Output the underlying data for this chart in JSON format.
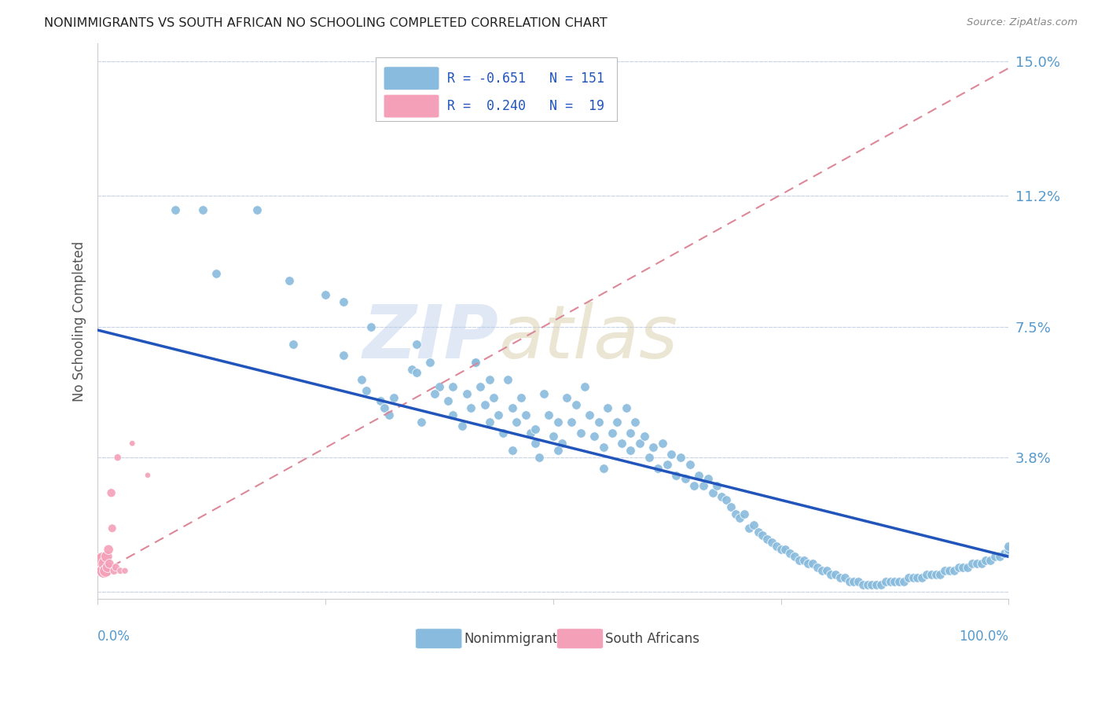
{
  "title": "NONIMMIGRANTS VS SOUTH AFRICAN NO SCHOOLING COMPLETED CORRELATION CHART",
  "source": "Source: ZipAtlas.com",
  "ylabel": "No Schooling Completed",
  "yticks": [
    0.0,
    0.038,
    0.075,
    0.112,
    0.15
  ],
  "ytick_labels": [
    "",
    "3.8%",
    "7.5%",
    "11.2%",
    "15.0%"
  ],
  "xlim": [
    0.0,
    1.0
  ],
  "ylim": [
    -0.002,
    0.155
  ],
  "blue_color": "#88bbdd",
  "pink_color": "#f4a0b8",
  "blue_line_color": "#2255bb",
  "pink_line_color": "#dd8899",
  "grid_color": "#c8d4e8",
  "tick_color": "#5599cc",
  "title_color": "#222222",
  "source_color": "#888888",
  "bg_color": "#ffffff",
  "blue_line_x0": 0.0,
  "blue_line_y0": 0.074,
  "blue_line_x1": 1.0,
  "blue_line_y1": 0.01,
  "pink_line_x0": 0.0,
  "pink_line_y0": 0.005,
  "pink_line_x1": 1.0,
  "pink_line_y1": 0.148,
  "blue_x": [
    0.085,
    0.115,
    0.13,
    0.175,
    0.21,
    0.215,
    0.25,
    0.27,
    0.29,
    0.295,
    0.31,
    0.315,
    0.32,
    0.325,
    0.345,
    0.355,
    0.365,
    0.375,
    0.385,
    0.39,
    0.4,
    0.405,
    0.41,
    0.415,
    0.42,
    0.425,
    0.43,
    0.435,
    0.44,
    0.445,
    0.45,
    0.455,
    0.46,
    0.465,
    0.47,
    0.475,
    0.48,
    0.485,
    0.49,
    0.495,
    0.5,
    0.505,
    0.51,
    0.515,
    0.52,
    0.525,
    0.53,
    0.535,
    0.54,
    0.545,
    0.55,
    0.555,
    0.56,
    0.565,
    0.57,
    0.575,
    0.58,
    0.585,
    0.59,
    0.595,
    0.6,
    0.605,
    0.61,
    0.615,
    0.62,
    0.625,
    0.63,
    0.635,
    0.64,
    0.645,
    0.65,
    0.655,
    0.66,
    0.665,
    0.67,
    0.675,
    0.68,
    0.685,
    0.69,
    0.695,
    0.7,
    0.705,
    0.71,
    0.715,
    0.72,
    0.725,
    0.73,
    0.735,
    0.74,
    0.745,
    0.75,
    0.755,
    0.76,
    0.765,
    0.77,
    0.775,
    0.78,
    0.785,
    0.79,
    0.795,
    0.8,
    0.805,
    0.81,
    0.815,
    0.82,
    0.825,
    0.83,
    0.835,
    0.84,
    0.845,
    0.85,
    0.855,
    0.86,
    0.865,
    0.87,
    0.875,
    0.88,
    0.885,
    0.89,
    0.895,
    0.9,
    0.905,
    0.91,
    0.915,
    0.92,
    0.925,
    0.93,
    0.935,
    0.94,
    0.945,
    0.95,
    0.955,
    0.96,
    0.965,
    0.97,
    0.975,
    0.98,
    0.985,
    0.99,
    0.995,
    1.0,
    1.0,
    1.0,
    0.37,
    0.43,
    0.3,
    0.48,
    0.415,
    0.27,
    0.35,
    0.455,
    0.505,
    0.39,
    0.555,
    0.585,
    0.35
  ],
  "blue_y": [
    0.108,
    0.108,
    0.09,
    0.108,
    0.088,
    0.07,
    0.084,
    0.067,
    0.06,
    0.057,
    0.054,
    0.052,
    0.05,
    0.055,
    0.063,
    0.048,
    0.065,
    0.058,
    0.054,
    0.05,
    0.047,
    0.056,
    0.052,
    0.065,
    0.058,
    0.053,
    0.06,
    0.055,
    0.05,
    0.045,
    0.06,
    0.052,
    0.048,
    0.055,
    0.05,
    0.045,
    0.042,
    0.038,
    0.056,
    0.05,
    0.044,
    0.048,
    0.042,
    0.055,
    0.048,
    0.053,
    0.045,
    0.058,
    0.05,
    0.044,
    0.048,
    0.041,
    0.052,
    0.045,
    0.048,
    0.042,
    0.052,
    0.045,
    0.048,
    0.042,
    0.044,
    0.038,
    0.041,
    0.035,
    0.042,
    0.036,
    0.039,
    0.033,
    0.038,
    0.032,
    0.036,
    0.03,
    0.033,
    0.03,
    0.032,
    0.028,
    0.03,
    0.027,
    0.026,
    0.024,
    0.022,
    0.021,
    0.022,
    0.018,
    0.019,
    0.017,
    0.016,
    0.015,
    0.014,
    0.013,
    0.012,
    0.012,
    0.011,
    0.01,
    0.009,
    0.009,
    0.008,
    0.008,
    0.007,
    0.006,
    0.006,
    0.005,
    0.005,
    0.004,
    0.004,
    0.003,
    0.003,
    0.003,
    0.002,
    0.002,
    0.002,
    0.002,
    0.002,
    0.003,
    0.003,
    0.003,
    0.003,
    0.003,
    0.004,
    0.004,
    0.004,
    0.004,
    0.005,
    0.005,
    0.005,
    0.005,
    0.006,
    0.006,
    0.006,
    0.007,
    0.007,
    0.007,
    0.008,
    0.008,
    0.008,
    0.009,
    0.009,
    0.01,
    0.01,
    0.011,
    0.011,
    0.012,
    0.013,
    0.056,
    0.048,
    0.075,
    0.046,
    0.065,
    0.082,
    0.07,
    0.04,
    0.04,
    0.058,
    0.035,
    0.04,
    0.062
  ],
  "pink_x": [
    0.003,
    0.005,
    0.006,
    0.007,
    0.008,
    0.009,
    0.01,
    0.011,
    0.012,
    0.013,
    0.015,
    0.016,
    0.018,
    0.02,
    0.022,
    0.025,
    0.03,
    0.038,
    0.055
  ],
  "pink_y": [
    0.008,
    0.007,
    0.009,
    0.006,
    0.008,
    0.006,
    0.01,
    0.007,
    0.012,
    0.008,
    0.028,
    0.018,
    0.006,
    0.007,
    0.038,
    0.006,
    0.006,
    0.042,
    0.033
  ],
  "pink_sizes": [
    350,
    280,
    220,
    180,
    150,
    130,
    110,
    90,
    80,
    70,
    65,
    60,
    55,
    50,
    45,
    40,
    35,
    30,
    28
  ]
}
